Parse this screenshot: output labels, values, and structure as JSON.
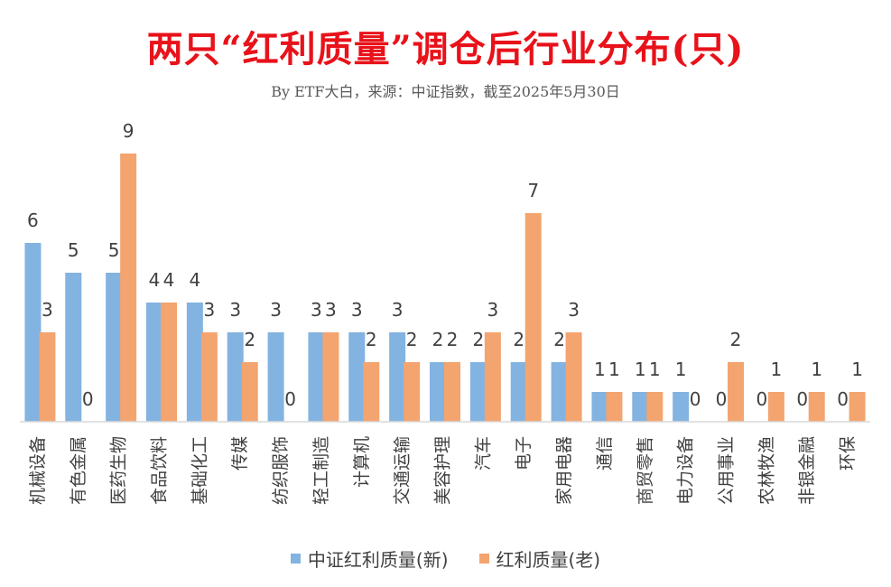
{
  "chart_data": {
    "type": "bar",
    "title": "两只“红利质量”调仓后行业分布(只)",
    "subtitle": "By ETF大白，来源：中证指数，截至2025年5月30日",
    "categories": [
      "机械设备",
      "有色金属",
      "医药生物",
      "食品饮料",
      "基础化工",
      "传媒",
      "纺织服饰",
      "轻工制造",
      "计算机",
      "交通运输",
      "美容护理",
      "汽车",
      "电子",
      "家用电器",
      "通信",
      "商贸零售",
      "电力设备",
      "公用事业",
      "农林牧渔",
      "非银金融",
      "环保"
    ],
    "series": [
      {
        "name": "中证红利质量(新)",
        "color": "#83b3e0",
        "values": [
          6,
          5,
          5,
          4,
          4,
          3,
          3,
          3,
          3,
          3,
          2,
          2,
          2,
          2,
          1,
          1,
          1,
          0,
          0,
          0,
          0
        ]
      },
      {
        "name": "红利质量(老)",
        "color": "#f3a46f",
        "values": [
          3,
          0,
          9,
          4,
          3,
          2,
          0,
          3,
          2,
          2,
          2,
          3,
          7,
          3,
          1,
          1,
          0,
          2,
          1,
          1,
          1
        ]
      }
    ],
    "ylim": [
      0,
      9
    ],
    "grid": false,
    "legend": "bottom"
  }
}
